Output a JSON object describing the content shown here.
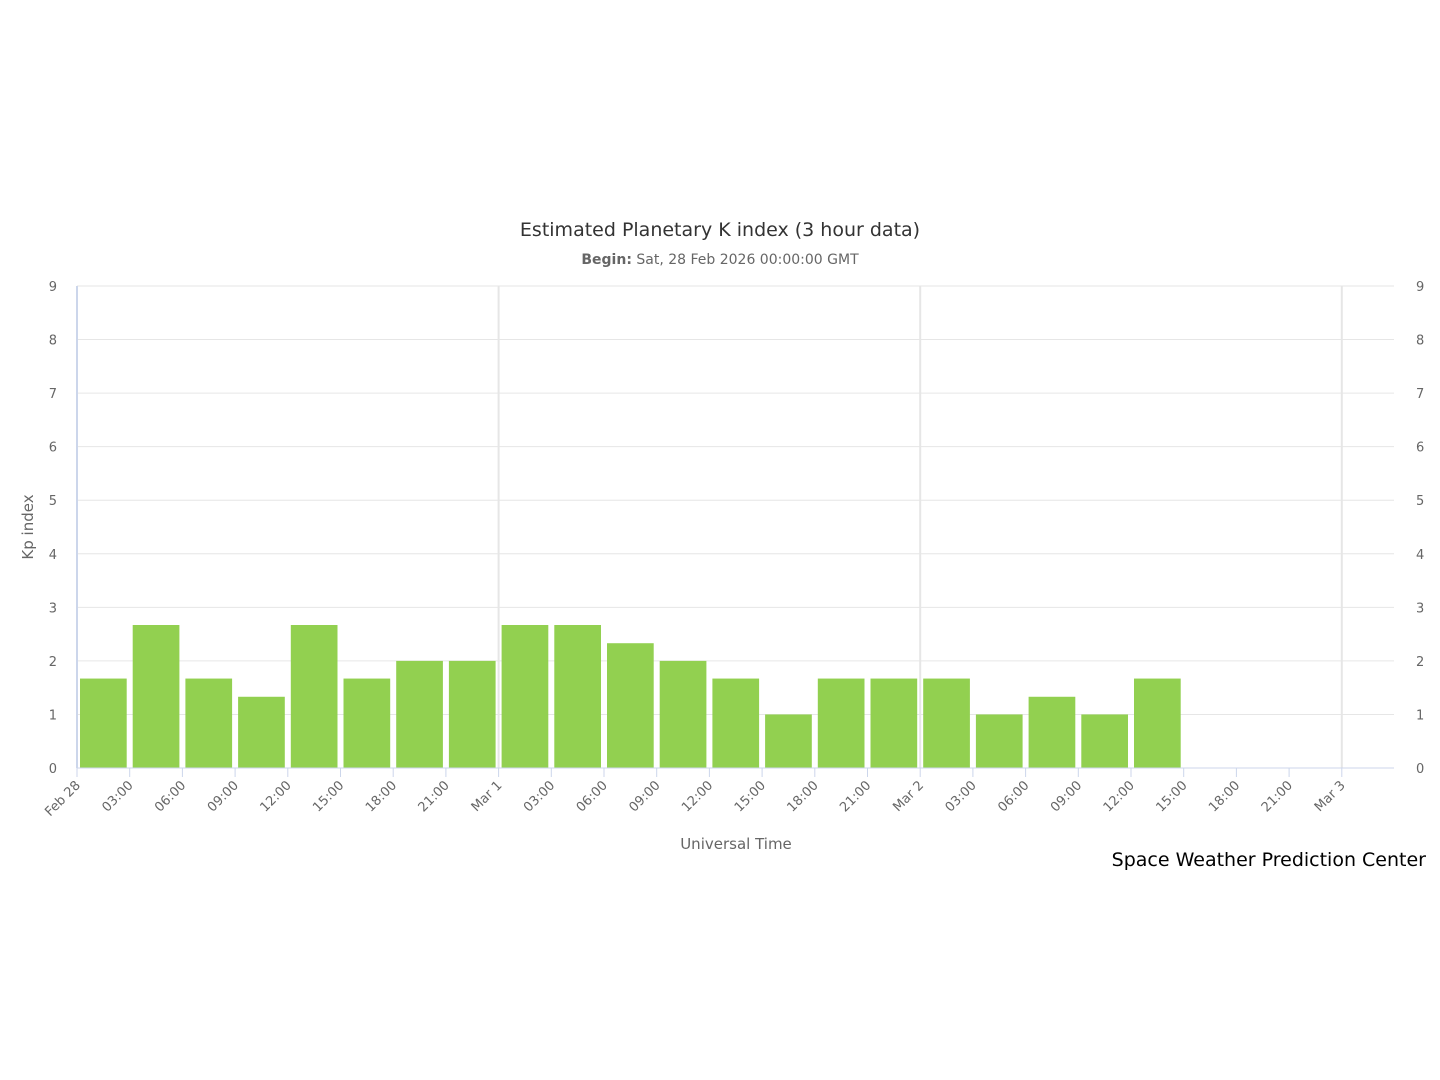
{
  "chart_data": {
    "type": "bar",
    "title": "Estimated Planetary K index (3 hour data)",
    "subtitle_label": "Begin:",
    "subtitle_value": " Sat, 28 Feb 2026 00:00:00 GMT",
    "xlabel": "Universal Time",
    "ylabel": "Kp index",
    "ylim": [
      0,
      9
    ],
    "yticks": [
      "0",
      "1",
      "2",
      "3",
      "4",
      "5",
      "6",
      "7",
      "8",
      "9"
    ],
    "xticks": [
      "Feb 28",
      "03:00",
      "06:00",
      "09:00",
      "12:00",
      "15:00",
      "18:00",
      "21:00",
      "Mar 1",
      "03:00",
      "06:00",
      "09:00",
      "12:00",
      "15:00",
      "18:00",
      "21:00",
      "Mar 2",
      "03:00",
      "06:00",
      "09:00",
      "12:00",
      "15:00",
      "18:00",
      "21:00",
      "Mar 3"
    ],
    "categories": [
      "Feb 28 00:00",
      "Feb 28 03:00",
      "Feb 28 06:00",
      "Feb 28 09:00",
      "Feb 28 12:00",
      "Feb 28 15:00",
      "Feb 28 18:00",
      "Feb 28 21:00",
      "Mar 1 00:00",
      "Mar 1 03:00",
      "Mar 1 06:00",
      "Mar 1 09:00",
      "Mar 1 12:00",
      "Mar 1 15:00",
      "Mar 1 18:00",
      "Mar 1 21:00",
      "Mar 2 00:00",
      "Mar 2 03:00",
      "Mar 2 06:00",
      "Mar 2 09:00",
      "Mar 2 12:00"
    ],
    "values": [
      1.67,
      2.67,
      1.67,
      1.33,
      2.67,
      1.67,
      2.0,
      2.0,
      2.67,
      2.67,
      2.33,
      2.0,
      1.67,
      1.0,
      1.67,
      1.67,
      1.67,
      1.0,
      1.33,
      1.0,
      1.67
    ],
    "bar_color": "#92d050",
    "grid": true,
    "secondary_y_axis": true
  },
  "credit": "Space Weather Prediction Center"
}
